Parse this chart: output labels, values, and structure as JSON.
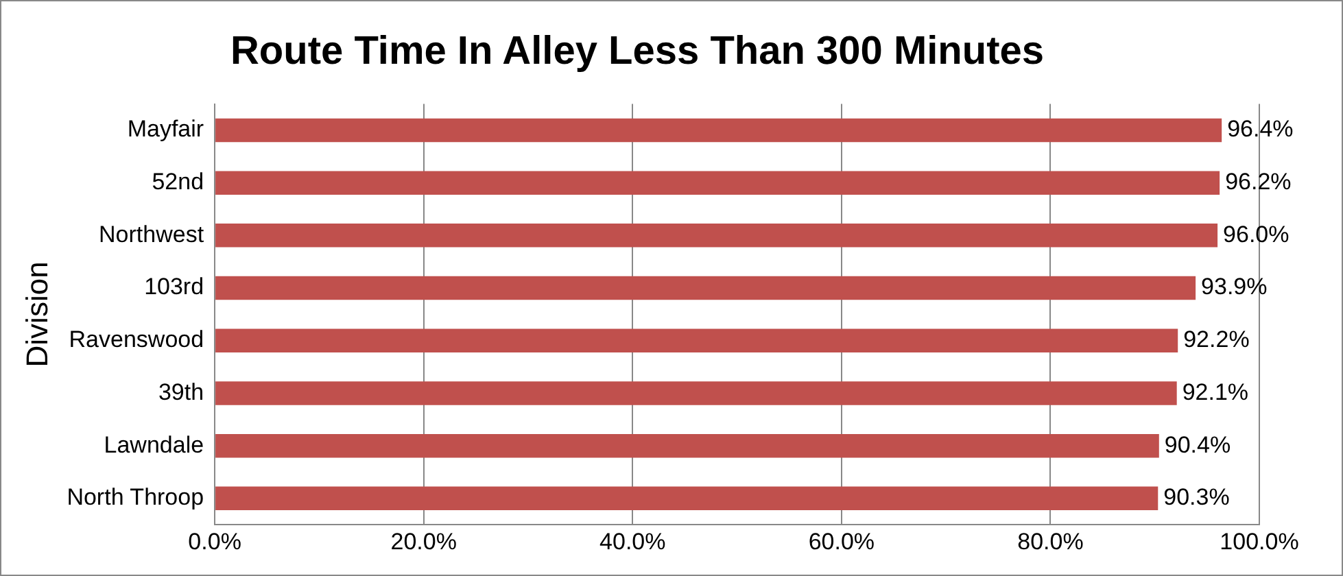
{
  "chart_data": {
    "type": "bar",
    "orientation": "horizontal",
    "title": "Route Time In Alley Less Than 300 Minutes",
    "ylabel": "Division",
    "categories": [
      "Mayfair",
      "52nd",
      "Northwest",
      "103rd",
      "Ravenswood",
      "39th",
      "Lawndale",
      "North Throop"
    ],
    "values": [
      96.4,
      96.2,
      96.0,
      93.9,
      92.2,
      92.1,
      90.4,
      90.3
    ],
    "value_labels": [
      "96.4%",
      "96.2%",
      "96.0%",
      "93.9%",
      "92.2%",
      "92.1%",
      "90.4%",
      "90.3%"
    ],
    "color": "#c0504d",
    "xlim": [
      0,
      100
    ],
    "xticks": [
      {
        "value": 0,
        "label": "0.0%"
      },
      {
        "value": 20,
        "label": "20.0%"
      },
      {
        "value": 40,
        "label": "40.0%"
      },
      {
        "value": 60,
        "label": "60.0%"
      },
      {
        "value": 80,
        "label": "80.0%"
      },
      {
        "value": 100,
        "label": "100.0%"
      }
    ],
    "grid": "x",
    "legend": false
  }
}
